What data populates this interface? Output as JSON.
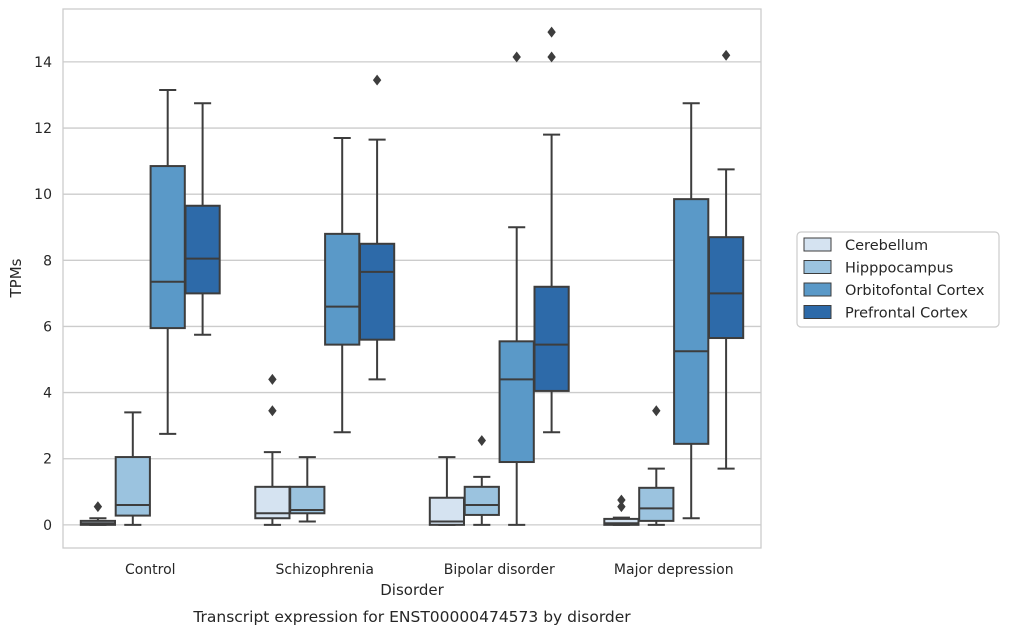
{
  "chart_data": {
    "type": "box",
    "xlabel": "Disorder",
    "ylabel": "TPMs",
    "caption": "Transcript expression for ENST00000474573 by disorder",
    "ylim": [
      -0.7,
      15.6
    ],
    "yticks": [
      0,
      2,
      4,
      6,
      8,
      10,
      12,
      14
    ],
    "grid": "horizontal",
    "legend_position": "right",
    "categories": [
      "Control",
      "Schizophrenia",
      "Bipolar disorder",
      "Major depression"
    ],
    "series": [
      {
        "name": "Cerebellum",
        "color": "#d5e3f1",
        "boxes": [
          {
            "whisker_low": 0.0,
            "q1": 0.0,
            "median": 0.05,
            "q3": 0.12,
            "whisker_high": 0.2,
            "outliers": [
              0.55
            ]
          },
          {
            "whisker_low": 0.0,
            "q1": 0.2,
            "median": 0.35,
            "q3": 1.15,
            "whisker_high": 2.2,
            "outliers": [
              3.45,
              4.4
            ]
          },
          {
            "whisker_low": 0.0,
            "q1": 0.0,
            "median": 0.1,
            "q3": 0.82,
            "whisker_high": 2.05,
            "outliers": []
          },
          {
            "whisker_low": 0.0,
            "q1": 0.0,
            "median": 0.05,
            "q3": 0.18,
            "whisker_high": 0.22,
            "outliers": [
              0.55,
              0.75
            ]
          }
        ]
      },
      {
        "name": "Hipppocampus",
        "color": "#9bc3df",
        "boxes": [
          {
            "whisker_low": 0.0,
            "q1": 0.28,
            "median": 0.6,
            "q3": 2.05,
            "whisker_high": 3.4,
            "outliers": []
          },
          {
            "whisker_low": 0.1,
            "q1": 0.35,
            "median": 0.45,
            "q3": 1.15,
            "whisker_high": 2.05,
            "outliers": []
          },
          {
            "whisker_low": 0.0,
            "q1": 0.3,
            "median": 0.6,
            "q3": 1.15,
            "whisker_high": 1.45,
            "outliers": [
              2.55
            ]
          },
          {
            "whisker_low": 0.0,
            "q1": 0.12,
            "median": 0.5,
            "q3": 1.12,
            "whisker_high": 1.7,
            "outliers": [
              3.45
            ]
          }
        ]
      },
      {
        "name": "Orbitofontal Cortex",
        "color": "#5a99c8",
        "boxes": [
          {
            "whisker_low": 2.75,
            "q1": 5.95,
            "median": 7.35,
            "q3": 10.85,
            "whisker_high": 13.15,
            "outliers": []
          },
          {
            "whisker_low": 2.8,
            "q1": 5.45,
            "median": 6.6,
            "q3": 8.8,
            "whisker_high": 11.7,
            "outliers": []
          },
          {
            "whisker_low": 0.0,
            "q1": 1.9,
            "median": 4.4,
            "q3": 5.55,
            "whisker_high": 9.0,
            "outliers": [
              14.15
            ]
          },
          {
            "whisker_low": 0.2,
            "q1": 2.45,
            "median": 5.25,
            "q3": 9.85,
            "whisker_high": 12.75,
            "outliers": []
          }
        ]
      },
      {
        "name": "Prefrontal Cortex",
        "color": "#2d6aa9",
        "boxes": [
          {
            "whisker_low": 5.75,
            "q1": 7.0,
            "median": 8.05,
            "q3": 9.65,
            "whisker_high": 12.75,
            "outliers": []
          },
          {
            "whisker_low": 4.4,
            "q1": 5.6,
            "median": 7.65,
            "q3": 8.5,
            "whisker_high": 11.65,
            "outliers": [
              13.45
            ]
          },
          {
            "whisker_low": 2.8,
            "q1": 4.05,
            "median": 5.45,
            "q3": 7.2,
            "whisker_high": 11.8,
            "outliers": [
              14.15,
              14.9
            ]
          },
          {
            "whisker_low": 1.7,
            "q1": 5.65,
            "median": 7.0,
            "q3": 8.7,
            "whisker_high": 10.75,
            "outliers": [
              14.2
            ]
          }
        ]
      }
    ]
  }
}
